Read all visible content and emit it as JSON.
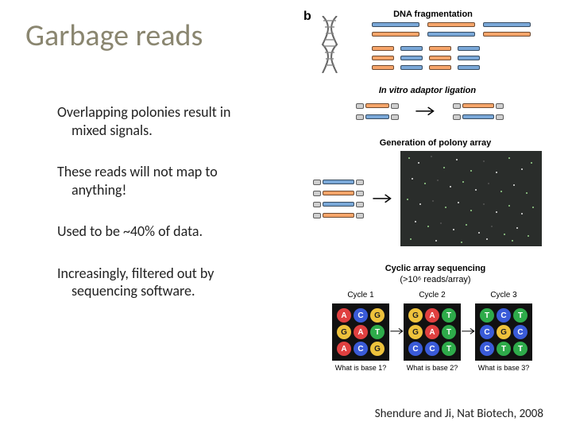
{
  "title": "Garbage reads",
  "bullets": {
    "p1a": "Overlapping polonies result in",
    "p1b": "mixed signals.",
    "p2a": "These reads will not map to",
    "p2b": "anything!",
    "p3": "Used to be ~40% of data.",
    "p4a": "Increasingly, filtered out by",
    "p4b": "sequencing software."
  },
  "citation": "Shendure and Ji, Nat Biotech, 2008",
  "diagram": {
    "panel_label": "b",
    "sect1": "DNA fragmentation",
    "sect2": "In vitro adaptor ligation",
    "sect3": "Generation of polony array",
    "sect4a": "Cyclic array sequencing",
    "sect4b": "(>10⁶ reads/array)",
    "cycles": [
      "Cycle 1",
      "Cycle 2",
      "Cycle 3"
    ],
    "bases": [
      "What is base 1?",
      "What is base 2?",
      "What is base 3?"
    ],
    "cycle_data": [
      {
        "balls": [
          [
            "A",
            "red"
          ],
          [
            "C",
            "blue"
          ],
          [
            "G",
            "yellow"
          ],
          [
            "G",
            "yellow"
          ],
          [
            "A",
            "red"
          ],
          [
            "T",
            "green"
          ],
          [
            "A",
            "red"
          ],
          [
            "C",
            "blue"
          ],
          [
            "G",
            "yellow"
          ]
        ]
      },
      {
        "balls": [
          [
            "G",
            "yellow"
          ],
          [
            "A",
            "red"
          ],
          [
            "T",
            "green"
          ],
          [
            "G",
            "yellow"
          ],
          [
            "A",
            "red"
          ],
          [
            "T",
            "green"
          ],
          [
            "C",
            "blue"
          ],
          [
            "C",
            "blue"
          ],
          [
            "T",
            "green"
          ]
        ]
      },
      {
        "balls": [
          [
            "T",
            "green"
          ],
          [
            "C",
            "blue"
          ],
          [
            "T",
            "green"
          ],
          [
            "C",
            "blue"
          ],
          [
            "G",
            "yellow"
          ],
          [
            "C",
            "blue"
          ],
          [
            "C",
            "blue"
          ],
          [
            "T",
            "green"
          ],
          [
            "T",
            "green"
          ]
        ]
      }
    ],
    "colors": {
      "orange": "#f6a56a",
      "blue": "#7aa8d8",
      "grey": "#cfcfcf",
      "polony_bg": "#2a2d2b",
      "title_color": "#8a8670"
    }
  }
}
